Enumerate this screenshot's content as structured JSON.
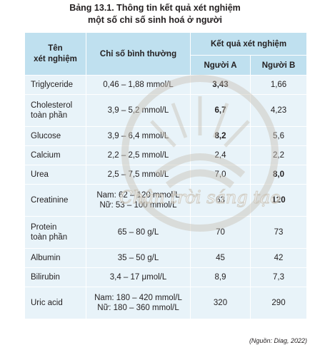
{
  "caption": {
    "line1": "Bảng 13.1. Thông tin kết quả xét nghiệm",
    "line2": "một số chỉ số sinh hoá ở người"
  },
  "table": {
    "headers": {
      "name": "Tên\nxét nghiệm",
      "normal": "Chỉ số bình thường",
      "results": "Kết quả xét nghiệm",
      "a": "Người A",
      "b": "Người B"
    },
    "rows": [
      {
        "name": "Triglyceride",
        "normal": "0,46 – 1,88 mmol/L",
        "a": "3,43",
        "b": "1,66",
        "a_bold": true,
        "b_bold": false
      },
      {
        "name": "Cholesterol\ntoàn phần",
        "normal": "3,9 – 5,2 mmol/L",
        "a": "6,7",
        "b": "4,23",
        "a_bold": true,
        "b_bold": false
      },
      {
        "name": "Glucose",
        "normal": "3,9 – 6,4 mmol/L",
        "a": "8,2",
        "b": "5,6",
        "a_bold": true,
        "b_bold": false
      },
      {
        "name": "Calcium",
        "normal": "2,2 – 2,5 mmol/L",
        "a": "2,4",
        "b": "2,2",
        "a_bold": false,
        "b_bold": false
      },
      {
        "name": "Urea",
        "normal": "2,5 – 7,5 mmol/L",
        "a": "7,0",
        "b": "8,0",
        "a_bold": false,
        "b_bold": true
      },
      {
        "name": "Creatinine",
        "normal": "Nam: 62 – 120 mmol/L\nNữ: 53 – 100 mmol/L",
        "a": "63",
        "b": "120",
        "a_bold": false,
        "b_bold": true
      },
      {
        "name": "Protein\ntoàn phần",
        "normal": "65 – 80 g/L",
        "a": "70",
        "b": "73",
        "a_bold": false,
        "b_bold": false
      },
      {
        "name": "Albumin",
        "normal": "35 – 50 g/L",
        "a": "45",
        "b": "42",
        "a_bold": false,
        "b_bold": false
      },
      {
        "name": "Bilirubin",
        "normal": "3,4 – 17 μmol/L",
        "a": "8,9",
        "b": "7,3",
        "a_bold": false,
        "b_bold": false
      },
      {
        "name": "Uric acid",
        "normal": "Nam: 180 – 420 mmol/L\nNữ: 180 – 360 mmol/L",
        "a": "320",
        "b": "290",
        "a_bold": false,
        "b_bold": false
      }
    ]
  },
  "source": "(Nguồn: Diag, 2022)",
  "watermark": "Chân trời sáng tạo",
  "colors": {
    "header": "#bfe0ef",
    "cell": "#e8f3f9",
    "watermark": "#c9c2b5"
  }
}
